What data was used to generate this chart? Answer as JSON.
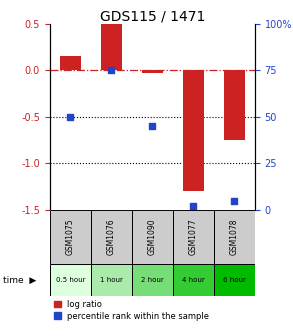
{
  "title": "GDS115 / 1471",
  "samples": [
    "GSM1075",
    "GSM1076",
    "GSM1090",
    "GSM1077",
    "GSM1078"
  ],
  "time_labels": [
    "0.5 hour",
    "1 hour",
    "2 hour",
    "4 hour",
    "6 hour"
  ],
  "log_ratio": [
    0.15,
    0.5,
    -0.03,
    -1.3,
    -0.75
  ],
  "percentile": [
    50,
    75,
    45,
    2,
    5
  ],
  "ylim_left": [
    -1.5,
    0.5
  ],
  "ylim_right": [
    0,
    100
  ],
  "yticks_left": [
    -1.5,
    -1.0,
    -0.5,
    0.0,
    0.5
  ],
  "yticks_right": [
    0,
    25,
    50,
    75,
    100
  ],
  "bar_color": "#cc2222",
  "dot_color": "#2244cc",
  "time_colors": [
    "#ddffdd",
    "#aaeaaa",
    "#77dd77",
    "#33cc33",
    "#00bb00"
  ],
  "sample_bg": "#cccccc",
  "title_fontsize": 10,
  "bar_width": 0.5,
  "legend_fontsize": 6,
  "tick_fontsize": 7
}
